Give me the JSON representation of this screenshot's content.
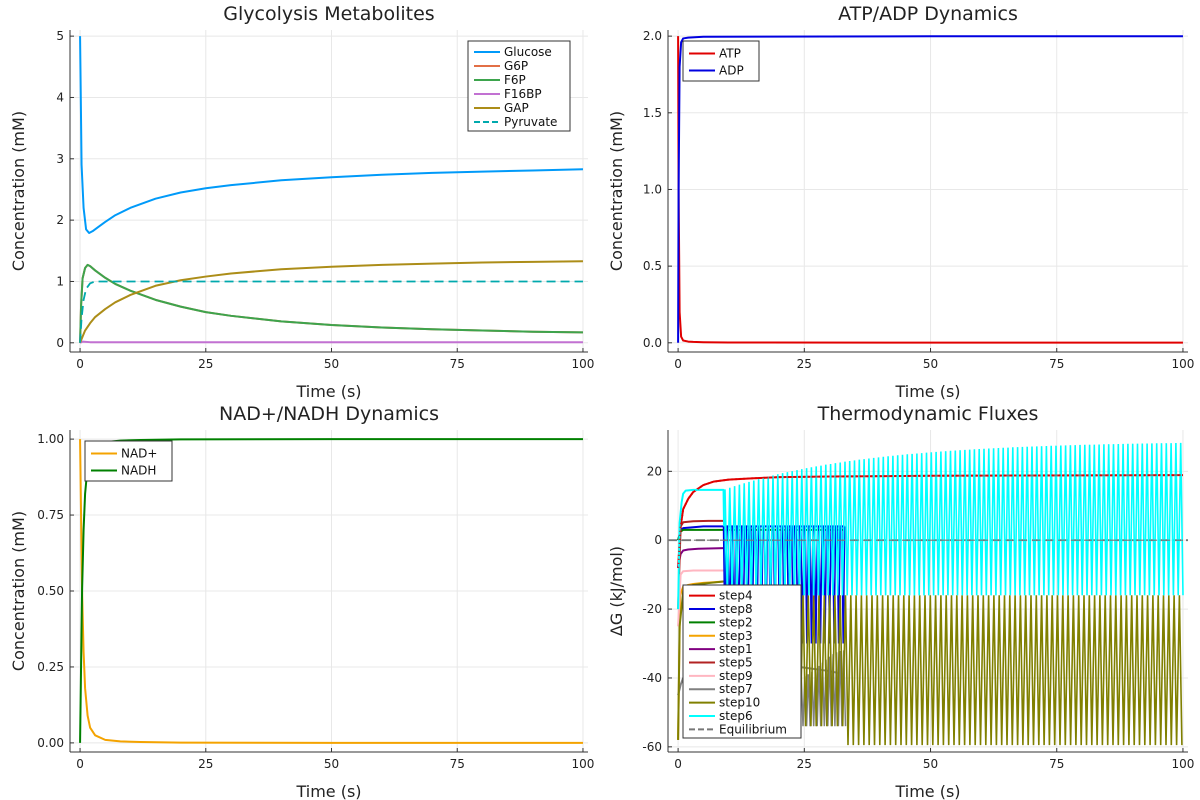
{
  "chart_data": [
    {
      "type": "line",
      "title": "Glycolysis Metabolites",
      "xlabel": "Time (s)",
      "ylabel": "Concentration (mM)",
      "xlim": [
        -2,
        101
      ],
      "ylim": [
        -0.15,
        5.1
      ],
      "xticks": [
        0,
        25,
        50,
        75,
        100
      ],
      "yticks": [
        0,
        1,
        2,
        3,
        4,
        5
      ],
      "legend": "top-right",
      "grid": true,
      "series": [
        {
          "name": "Glucose",
          "color": "#009af9",
          "dash": false,
          "x": [
            0,
            0.3,
            0.7,
            1.2,
            1.8,
            2.5,
            3.5,
            5,
            7,
            10,
            15,
            20,
            25,
            30,
            40,
            50,
            60,
            70,
            80,
            90,
            100
          ],
          "y": [
            5.0,
            2.9,
            2.2,
            1.85,
            1.79,
            1.82,
            1.88,
            1.97,
            2.08,
            2.2,
            2.35,
            2.45,
            2.52,
            2.57,
            2.65,
            2.7,
            2.74,
            2.77,
            2.79,
            2.81,
            2.83
          ]
        },
        {
          "name": "G6P",
          "color": "#e26f46",
          "dash": false,
          "x": [
            0,
            0.2,
            0.5,
            1,
            1.5,
            2,
            3,
            5,
            7,
            10,
            15,
            20,
            25,
            30,
            40,
            50,
            60,
            70,
            80,
            90,
            100
          ],
          "y": [
            0,
            0.6,
            1.05,
            1.22,
            1.27,
            1.25,
            1.18,
            1.06,
            0.96,
            0.85,
            0.7,
            0.59,
            0.5,
            0.44,
            0.35,
            0.29,
            0.25,
            0.22,
            0.2,
            0.18,
            0.17
          ]
        },
        {
          "name": "F6P",
          "color": "#3da44d",
          "dash": false,
          "x": [
            0,
            0.2,
            0.5,
            1,
            1.5,
            2,
            3,
            5,
            7,
            10,
            15,
            20,
            25,
            30,
            40,
            50,
            60,
            70,
            80,
            90,
            100
          ],
          "y": [
            0,
            0.6,
            1.05,
            1.22,
            1.27,
            1.25,
            1.18,
            1.06,
            0.96,
            0.85,
            0.7,
            0.59,
            0.5,
            0.44,
            0.35,
            0.29,
            0.25,
            0.22,
            0.2,
            0.18,
            0.17
          ]
        },
        {
          "name": "F16BP",
          "color": "#c271d2",
          "dash": false,
          "x": [
            0,
            0.5,
            2,
            10,
            50,
            100
          ],
          "y": [
            0,
            0.02,
            0.01,
            0.01,
            0.01,
            0.01
          ]
        },
        {
          "name": "GAP",
          "color": "#ac8d18",
          "dash": false,
          "x": [
            0,
            0.5,
            1,
            2,
            3,
            5,
            7,
            10,
            15,
            20,
            25,
            30,
            40,
            50,
            60,
            70,
            80,
            90,
            100
          ],
          "y": [
            0,
            0.1,
            0.2,
            0.32,
            0.42,
            0.55,
            0.66,
            0.78,
            0.93,
            1.02,
            1.08,
            1.13,
            1.2,
            1.24,
            1.27,
            1.29,
            1.31,
            1.32,
            1.33
          ]
        },
        {
          "name": "Pyruvate",
          "color": "#00a9ad",
          "dash": true,
          "x": [
            0,
            0.3,
            0.7,
            1.2,
            2,
            3,
            5,
            10,
            50,
            100
          ],
          "y": [
            0,
            0.4,
            0.7,
            0.88,
            0.97,
            1.0,
            1.0,
            1.0,
            1.0,
            1.0
          ]
        }
      ]
    },
    {
      "type": "line",
      "title": "ATP/ADP Dynamics",
      "xlabel": "Time (s)",
      "ylabel": "Concentration (mM)",
      "xlim": [
        -2,
        101
      ],
      "ylim": [
        -0.06,
        2.04
      ],
      "xticks": [
        0,
        25,
        50,
        75,
        100
      ],
      "yticks": [
        0,
        0.5,
        1.0,
        1.5,
        2.0
      ],
      "yticklabels": [
        "0.0",
        "0.5",
        "1.0",
        "1.5",
        "2.0"
      ],
      "legend": "top-left",
      "grid": true,
      "series": [
        {
          "name": "ATP",
          "color": "#e00000",
          "dash": false,
          "x": [
            0,
            0.1,
            0.3,
            0.6,
            1,
            2,
            3,
            5,
            10,
            50,
            100
          ],
          "y": [
            2.0,
            1.0,
            0.2,
            0.04,
            0.015,
            0.008,
            0.006,
            0.004,
            0.002,
            0.001,
            0.001
          ]
        },
        {
          "name": "ADP",
          "color": "#0000e0",
          "dash": false,
          "x": [
            0,
            0.1,
            0.3,
            0.6,
            1,
            2,
            5,
            50,
            100
          ],
          "y": [
            0,
            1.0,
            1.8,
            1.96,
            1.985,
            1.99,
            1.996,
            1.999,
            1.999
          ]
        }
      ]
    },
    {
      "type": "line",
      "title": "NAD+/NADH Dynamics",
      "xlabel": "Time (s)",
      "ylabel": "Concentration (mM)",
      "xlim": [
        -2,
        101
      ],
      "ylim": [
        -0.03,
        1.03
      ],
      "xticks": [
        0,
        25,
        50,
        75,
        100
      ],
      "yticks": [
        0,
        0.25,
        0.5,
        0.75,
        1.0
      ],
      "yticklabels": [
        "0.00",
        "0.25",
        "0.50",
        "0.75",
        "1.00"
      ],
      "legend": "top-left",
      "grid": true,
      "series": [
        {
          "name": "NAD+",
          "color": "#f4a300",
          "dash": false,
          "x": [
            0,
            0.2,
            0.4,
            0.7,
            1,
            1.5,
            2,
            3,
            5,
            8,
            12,
            20,
            50,
            100
          ],
          "y": [
            1.0,
            0.75,
            0.5,
            0.3,
            0.18,
            0.09,
            0.05,
            0.025,
            0.01,
            0.005,
            0.003,
            0.001,
            0.0,
            0.0
          ]
        },
        {
          "name": "NADH",
          "color": "#008000",
          "dash": false,
          "x": [
            0,
            0.2,
            0.4,
            0.7,
            1,
            1.5,
            2,
            3,
            5,
            8,
            12,
            20,
            50,
            100
          ],
          "y": [
            0.0,
            0.25,
            0.5,
            0.7,
            0.82,
            0.91,
            0.95,
            0.975,
            0.99,
            0.995,
            0.997,
            0.999,
            1.0,
            1.0
          ]
        }
      ]
    },
    {
      "type": "line",
      "title": "Thermodynamic Fluxes",
      "xlabel": "Time (s)",
      "ylabel": "ΔG (kJ/mol)",
      "xlim": [
        -2,
        101
      ],
      "ylim": [
        -61.5,
        32
      ],
      "xticks": [
        0,
        25,
        50,
        75,
        100
      ],
      "yticks": [
        -60,
        -40,
        -20,
        0,
        20
      ],
      "legend": "bottom-left",
      "grid": true,
      "series": [
        {
          "name": "step4",
          "color": "#e00000",
          "dash": false,
          "x": [
            0,
            0.5,
            1,
            2,
            3,
            5,
            7,
            10,
            15,
            20,
            30,
            50,
            70,
            100
          ],
          "y": [
            -8,
            4,
            9,
            12,
            14,
            16,
            17,
            17.6,
            18,
            18.3,
            18.5,
            18.7,
            18.8,
            18.9
          ]
        },
        {
          "name": "step8",
          "color": "#0000e0",
          "dash": false,
          "x": [
            0,
            0.5,
            1,
            5,
            10,
            20,
            30,
            33
          ],
          "y": [
            0,
            3,
            3.5,
            4,
            4,
            4,
            4,
            4
          ]
        },
        {
          "name": "step2",
          "color": "#008000",
          "dash": false,
          "x": [
            0,
            0.5,
            1,
            5,
            10,
            20,
            33
          ],
          "y": [
            0,
            2.5,
            3,
            3,
            3,
            3,
            3
          ]
        },
        {
          "name": "step3",
          "color": "#f4a300",
          "dash": false,
          "x": [
            0,
            0.4,
            1,
            2,
            3,
            5,
            7,
            9
          ],
          "y": [
            -58,
            -16,
            -13.5,
            -13,
            -12.7,
            -12.4,
            -12.2,
            -12
          ]
        },
        {
          "name": "step1",
          "color": "#800080",
          "dash": false,
          "x": [
            0,
            0.5,
            1,
            2,
            4,
            6,
            9
          ],
          "y": [
            -8,
            -4,
            -3,
            -2.7,
            -2.5,
            -2.4,
            -2.3
          ]
        },
        {
          "name": "step5",
          "color": "#b22222",
          "dash": false,
          "x": [
            0,
            0.5,
            1,
            3,
            6,
            9
          ],
          "y": [
            -20,
            4,
            5.2,
            5.5,
            5.6,
            5.6
          ]
        },
        {
          "name": "step9",
          "color": "#ffb6c1",
          "dash": false,
          "x": [
            0,
            0.5,
            1,
            3,
            6,
            9
          ],
          "y": [
            -25,
            -10,
            -9,
            -8.8,
            -8.8,
            -8.8
          ]
        },
        {
          "name": "step7",
          "color": "#808080",
          "dash": false,
          "x": [
            0,
            0.5,
            1,
            3,
            6,
            9,
            15,
            20,
            25,
            30,
            33
          ],
          "y": [
            -45,
            -42,
            -40,
            -38,
            -37,
            -36.5,
            -36,
            -36,
            -37,
            -38,
            -39
          ]
        },
        {
          "name": "step10",
          "color": "#808000",
          "dash": false,
          "x": [
            0,
            0.3,
            1,
            2,
            3,
            5,
            7,
            9
          ],
          "y": [
            -58,
            -25,
            -15,
            -13.5,
            -13,
            -12.6,
            -12.3,
            -12
          ]
        },
        {
          "name": "step6",
          "color": "#00ffff",
          "dash": false,
          "x": [
            0,
            0.3,
            0.7,
            1,
            1.5,
            3,
            5,
            7,
            9,
            9.3
          ],
          "y": [
            -20,
            5,
            11,
            13.5,
            14.4,
            14.6,
            14.6,
            14.6,
            14.6,
            -16
          ]
        },
        {
          "name": "Equilibrium",
          "color": "#777777",
          "dash": true,
          "x": [
            -2,
            101
          ],
          "y": [
            0,
            0
          ]
        }
      ]
    }
  ]
}
